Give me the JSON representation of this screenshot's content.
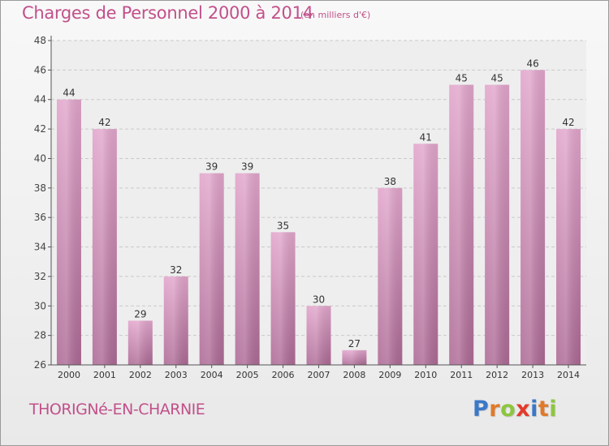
{
  "title": "Charges de Personnel 2000 à 2014",
  "subtitle": "(en milliers d'€)",
  "location": "THORIGNé-EN-CHARNIE",
  "logo": {
    "text": "Proxiti",
    "letters": [
      {
        "ch": "P",
        "color": "#3a78c8"
      },
      {
        "ch": "r",
        "color": "#e07a2a"
      },
      {
        "ch": "o",
        "color": "#8cc63e"
      },
      {
        "ch": "x",
        "color": "#e43a2a"
      },
      {
        "ch": "i",
        "color": "#3a78c8"
      },
      {
        "ch": "t",
        "color": "#e07a2a"
      },
      {
        "ch": "i",
        "color": "#8cc63e"
      }
    ]
  },
  "colors": {
    "title": "#c2508a",
    "bar_top": "#e2a6cc",
    "bar_bottom": "#ad6a95",
    "grid": "#c9c9c9",
    "axis": "#555555"
  },
  "chart_data": {
    "type": "bar",
    "categories": [
      "2000",
      "2001",
      "2002",
      "2003",
      "2004",
      "2005",
      "2006",
      "2007",
      "2008",
      "2009",
      "2010",
      "2011",
      "2012",
      "2013",
      "2014"
    ],
    "values": [
      44,
      42,
      29,
      32,
      39,
      39,
      35,
      30,
      27,
      38,
      41,
      45,
      45,
      46,
      42
    ],
    "ylim": [
      26,
      48
    ],
    "yticks": [
      26,
      28,
      30,
      32,
      34,
      36,
      38,
      40,
      42,
      44,
      46,
      48
    ],
    "data_labels": true,
    "grid": true,
    "xlabel": "",
    "ylabel": ""
  }
}
